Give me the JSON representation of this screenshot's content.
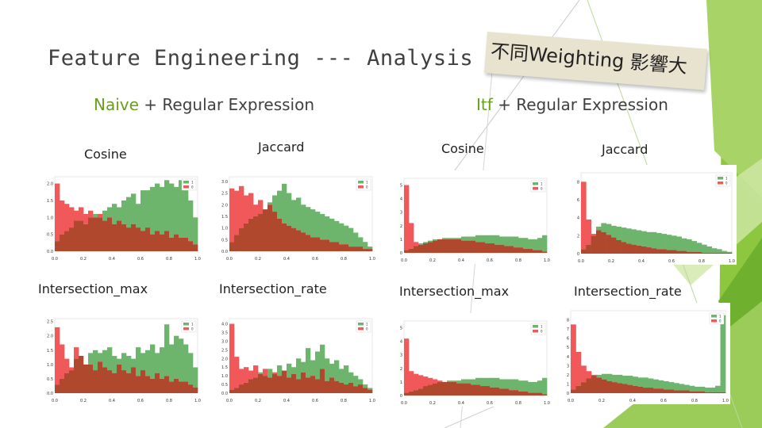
{
  "slide": {
    "title": "Feature Engineering --- Analysis",
    "sticky_note": "不同Weighting 影響大",
    "left_heading": {
      "highlight": "Naive",
      "rest": " + Regular Expression"
    },
    "right_heading": {
      "highlight": "Itf",
      "rest": " + Regular Expression"
    },
    "labels": [
      "Cosine",
      "Jaccard",
      "Cosine",
      "Jaccard",
      "Intersection_max",
      "Intersection_rate",
      "Intersection_max",
      "Intersection_rate"
    ],
    "colors": {
      "green": "#6db56d",
      "red": "#f0585a",
      "overlap": "#b0482e",
      "accent": "#6a9e1f"
    }
  },
  "chart_data": [
    {
      "type": "bar",
      "title": "Naive Cosine",
      "x_ticks": [
        "0.0",
        "0.2",
        "0.4",
        "0.6",
        "0.8",
        "1.0"
      ],
      "y_ticks": [
        "0.0",
        "0.5",
        "1.0",
        "1.5",
        "2.0"
      ],
      "ylim": [
        0,
        2.2
      ],
      "legend": [
        "1",
        "0"
      ],
      "series": [
        {
          "name": "1",
          "values": [
            0.3,
            0.5,
            0.6,
            0.7,
            0.9,
            0.9,
            0.8,
            1.0,
            1.1,
            1.0,
            1.2,
            1.3,
            1.4,
            1.3,
            1.5,
            1.6,
            1.7,
            1.4,
            1.8,
            1.8,
            1.9,
            2.0,
            1.9,
            2.1,
            2.0,
            1.9,
            2.1,
            1.8,
            1.5,
            1.0
          ]
        },
        {
          "name": "0",
          "values": [
            2.0,
            1.5,
            1.4,
            1.3,
            1.2,
            1.3,
            1.1,
            1.2,
            1.0,
            1.1,
            0.9,
            1.0,
            0.8,
            0.9,
            0.8,
            0.7,
            0.8,
            0.7,
            0.6,
            0.7,
            0.5,
            0.6,
            0.5,
            0.6,
            0.4,
            0.5,
            0.4,
            0.4,
            0.3,
            0.2
          ]
        }
      ]
    },
    {
      "type": "bar",
      "title": "Naive Jaccard",
      "x_ticks": [
        "0.0",
        "0.2",
        "0.4",
        "0.6",
        "0.8",
        "1.0"
      ],
      "y_ticks": [
        "0.0",
        "0.5",
        "1.0",
        "1.5",
        "2.0",
        "2.5",
        "3.0"
      ],
      "ylim": [
        0,
        3.2
      ],
      "legend": [
        "1",
        "0"
      ],
      "series": [
        {
          "name": "1",
          "values": [
            0.4,
            0.7,
            1.0,
            1.2,
            1.4,
            1.5,
            1.6,
            1.8,
            2.1,
            2.4,
            2.6,
            2.9,
            2.5,
            2.2,
            2.3,
            2.0,
            1.9,
            1.8,
            1.7,
            1.6,
            1.5,
            1.4,
            1.3,
            1.2,
            1.1,
            1.0,
            0.8,
            0.6,
            0.4,
            0.2
          ]
        },
        {
          "name": "0",
          "values": [
            2.7,
            2.6,
            2.8,
            2.4,
            2.5,
            2.0,
            2.2,
            1.8,
            2.0,
            1.7,
            1.4,
            1.2,
            1.1,
            1.0,
            0.9,
            0.8,
            0.7,
            0.6,
            0.6,
            0.5,
            0.5,
            0.4,
            0.4,
            0.3,
            0.3,
            0.2,
            0.2,
            0.2,
            0.1,
            0.1
          ]
        }
      ]
    },
    {
      "type": "bar",
      "title": "Itf Cosine",
      "x_ticks": [
        "0.0",
        "0.2",
        "0.4",
        "0.6",
        "0.8",
        "1.0"
      ],
      "y_ticks": [
        "0",
        "1",
        "2",
        "3",
        "4",
        "5"
      ],
      "ylim": [
        0,
        5.5
      ],
      "legend": [
        "1",
        "0"
      ],
      "series": [
        {
          "name": "1",
          "values": [
            0.2,
            0.3,
            0.5,
            0.7,
            0.8,
            0.9,
            1.0,
            1.0,
            1.1,
            1.1,
            1.1,
            1.1,
            1.2,
            1.2,
            1.2,
            1.3,
            1.3,
            1.3,
            1.3,
            1.3,
            1.2,
            1.2,
            1.2,
            1.2,
            1.1,
            1.1,
            1.0,
            1.0,
            1.1,
            1.3
          ]
        },
        {
          "name": "0",
          "values": [
            5.0,
            2.2,
            0.8,
            0.6,
            0.7,
            0.8,
            0.9,
            1.0,
            1.0,
            1.0,
            1.0,
            1.0,
            0.9,
            0.9,
            0.9,
            0.8,
            0.8,
            0.7,
            0.7,
            0.6,
            0.6,
            0.5,
            0.5,
            0.4,
            0.4,
            0.3,
            0.3,
            0.2,
            0.2,
            0.1
          ]
        }
      ]
    },
    {
      "type": "bar",
      "title": "Itf Jaccard",
      "x_ticks": [
        "0.0",
        "0.2",
        "0.4",
        "0.6",
        "0.8",
        "1.0"
      ],
      "y_ticks": [
        "0",
        "2",
        "4",
        "6",
        "8"
      ],
      "ylim": [
        0,
        9
      ],
      "legend": [
        "1",
        "0"
      ],
      "series": [
        {
          "name": "1",
          "values": [
            0.5,
            1.0,
            2.0,
            3.0,
            3.4,
            3.3,
            3.1,
            3.0,
            2.9,
            2.8,
            2.7,
            2.6,
            2.5,
            2.4,
            2.4,
            2.3,
            2.2,
            2.1,
            2.0,
            1.9,
            1.7,
            1.6,
            1.4,
            1.2,
            1.0,
            0.8,
            0.6,
            0.5,
            0.3,
            0.2
          ]
        },
        {
          "name": "0",
          "values": [
            8.0,
            3.8,
            2.2,
            2.6,
            2.4,
            2.1,
            1.8,
            1.5,
            1.3,
            1.1,
            1.0,
            0.9,
            0.8,
            0.7,
            0.6,
            0.5,
            0.5,
            0.4,
            0.4,
            0.3,
            0.3,
            0.2,
            0.2,
            0.2,
            0.1,
            0.1,
            0.1,
            0.1,
            0.1,
            0.1
          ]
        }
      ]
    },
    {
      "type": "bar",
      "title": "Naive Intersection_max",
      "x_ticks": [
        "0.0",
        "0.2",
        "0.4",
        "0.6",
        "0.8",
        "1.0"
      ],
      "y_ticks": [
        "0.0",
        "0.5",
        "1.0",
        "1.5",
        "2.0",
        "2.5"
      ],
      "ylim": [
        0,
        2.6
      ],
      "legend": [
        "1",
        "0"
      ],
      "series": [
        {
          "name": "1",
          "values": [
            0.3,
            0.5,
            0.7,
            0.8,
            1.2,
            1.3,
            1.0,
            1.4,
            1.5,
            1.4,
            1.5,
            1.6,
            1.3,
            1.2,
            1.4,
            1.3,
            1.2,
            1.6,
            1.4,
            1.5,
            1.7,
            1.4,
            1.6,
            2.4,
            1.7,
            2.0,
            1.9,
            1.7,
            1.4,
            0.9
          ]
        },
        {
          "name": "0",
          "values": [
            2.3,
            1.7,
            1.2,
            0.9,
            1.6,
            1.3,
            1.0,
            1.0,
            0.8,
            1.1,
            0.9,
            0.8,
            0.7,
            1.0,
            0.8,
            0.7,
            0.9,
            0.6,
            0.8,
            0.6,
            0.5,
            0.7,
            0.5,
            0.6,
            0.4,
            0.5,
            0.4,
            0.4,
            0.3,
            0.2
          ]
        }
      ]
    },
    {
      "type": "bar",
      "title": "Naive Intersection_rate",
      "x_ticks": [
        "0.0",
        "0.2",
        "0.4",
        "0.6",
        "0.8",
        "1.0"
      ],
      "y_ticks": [
        "0.0",
        "0.5",
        "1.0",
        "1.5",
        "2.0",
        "2.5",
        "3.0",
        "3.5",
        "4.0"
      ],
      "ylim": [
        0,
        4.3
      ],
      "legend": [
        "1",
        "0"
      ],
      "series": [
        {
          "name": "1",
          "values": [
            0.2,
            0.3,
            0.5,
            0.6,
            0.8,
            0.9,
            1.2,
            1.0,
            1.4,
            1.1,
            1.6,
            1.3,
            1.7,
            1.5,
            2.0,
            1.8,
            2.6,
            1.9,
            2.4,
            2.8,
            2.0,
            1.7,
            1.9,
            1.4,
            1.6,
            1.2,
            1.0,
            0.8,
            0.5,
            0.3
          ]
        },
        {
          "name": "0",
          "values": [
            4.0,
            2.1,
            1.4,
            1.5,
            1.3,
            1.6,
            1.1,
            1.4,
            0.9,
            1.2,
            1.0,
            1.3,
            0.9,
            1.1,
            0.8,
            1.2,
            0.9,
            1.0,
            0.8,
            1.4,
            0.7,
            0.9,
            0.7,
            0.6,
            0.5,
            0.6,
            0.4,
            0.5,
            0.3,
            0.2
          ]
        }
      ]
    },
    {
      "type": "bar",
      "title": "Itf Intersection_max",
      "x_ticks": [
        "0.0",
        "0.2",
        "0.4",
        "0.6",
        "0.8",
        "1.0"
      ],
      "y_ticks": [
        "0",
        "1",
        "2",
        "3",
        "4",
        "5"
      ],
      "ylim": [
        0,
        5.5
      ],
      "legend": [
        "1",
        "0"
      ],
      "series": [
        {
          "name": "1",
          "values": [
            0.2,
            0.3,
            0.4,
            0.5,
            0.7,
            0.8,
            0.9,
            1.0,
            1.0,
            1.1,
            1.1,
            1.1,
            1.2,
            1.2,
            1.2,
            1.3,
            1.3,
            1.3,
            1.3,
            1.3,
            1.2,
            1.2,
            1.2,
            1.2,
            1.1,
            1.1,
            1.0,
            1.0,
            1.1,
            1.3
          ]
        },
        {
          "name": "0",
          "values": [
            4.2,
            1.8,
            1.6,
            1.5,
            1.4,
            1.3,
            1.2,
            1.1,
            1.0,
            1.0,
            1.0,
            0.9,
            0.9,
            0.9,
            0.8,
            0.8,
            0.7,
            0.7,
            0.6,
            0.6,
            0.5,
            0.5,
            0.4,
            0.4,
            0.3,
            0.3,
            0.2,
            0.2,
            0.2,
            0.1
          ]
        }
      ]
    },
    {
      "type": "bar",
      "title": "Itf Intersection_rate",
      "x_ticks": [
        "0.0",
        "0.2",
        "0.4",
        "0.6",
        "0.8",
        "1.0"
      ],
      "y_ticks": [
        "0",
        "1",
        "2",
        "3",
        "4",
        "5",
        "6",
        "7",
        "8"
      ],
      "ylim": [
        0,
        9
      ],
      "legend": [
        "1",
        "0"
      ],
      "series": [
        {
          "name": "1",
          "values": [
            0.4,
            0.8,
            1.2,
            1.6,
            1.9,
            2.0,
            2.1,
            2.1,
            2.0,
            2.0,
            1.9,
            1.9,
            1.8,
            1.7,
            1.7,
            1.6,
            1.5,
            1.4,
            1.3,
            1.2,
            1.1,
            1.0,
            0.9,
            0.8,
            0.7,
            0.7,
            0.6,
            0.6,
            0.8,
            8.5
          ]
        },
        {
          "name": "0",
          "values": [
            7.5,
            4.5,
            3.0,
            2.4,
            2.0,
            1.7,
            1.5,
            1.3,
            1.2,
            1.1,
            1.0,
            0.9,
            0.8,
            0.7,
            0.6,
            0.6,
            0.5,
            0.5,
            0.4,
            0.4,
            0.3,
            0.3,
            0.3,
            0.2,
            0.2,
            0.2,
            0.1,
            0.1,
            0.1,
            0.1
          ]
        }
      ]
    }
  ]
}
